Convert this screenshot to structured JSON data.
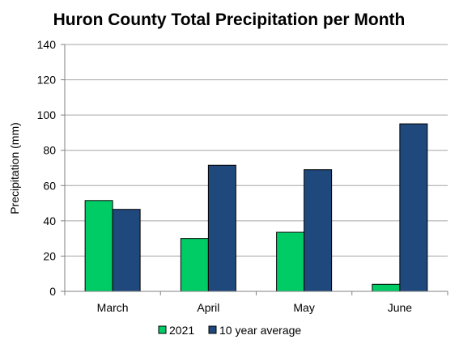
{
  "chart_data": {
    "type": "bar",
    "title": "Huron County Total Precipitation per Month",
    "xlabel": "",
    "ylabel": "Precipitation (mm)",
    "ylim": [
      0,
      140
    ],
    "yticks": [
      0,
      20,
      40,
      60,
      80,
      100,
      120,
      140
    ],
    "categories": [
      "March",
      "April",
      "May",
      "June"
    ],
    "series": [
      {
        "name": "2021",
        "color": "#00cc66",
        "values": [
          51.5,
          30,
          33.5,
          4
        ]
      },
      {
        "name": "10 year average",
        "color": "#1f497d",
        "values": [
          46.5,
          71.5,
          69,
          95
        ]
      }
    ],
    "grid": true,
    "legend_position": "bottom"
  }
}
